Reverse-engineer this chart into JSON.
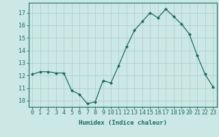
{
  "x": [
    0,
    1,
    2,
    3,
    4,
    5,
    6,
    7,
    8,
    9,
    10,
    11,
    12,
    13,
    14,
    15,
    16,
    17,
    18,
    19,
    20,
    21,
    22,
    23
  ],
  "y": [
    12.1,
    12.3,
    12.3,
    12.2,
    12.2,
    10.8,
    10.5,
    9.75,
    9.9,
    11.6,
    11.4,
    12.8,
    14.3,
    15.6,
    16.3,
    17.0,
    16.6,
    17.3,
    16.7,
    16.1,
    15.3,
    13.6,
    12.1,
    11.1
  ],
  "line_color": "#1a6b5e",
  "marker": "D",
  "marker_size": 2.0,
  "bg_color": "#cce8e5",
  "grid_color": "#b0d0cc",
  "xlabel": "Humidex (Indice chaleur)",
  "ylabel_ticks": [
    10,
    11,
    12,
    13,
    14,
    15,
    16,
    17
  ],
  "ylim": [
    9.5,
    17.8
  ],
  "xlim": [
    -0.5,
    23.5
  ],
  "tick_color": "#1a6b5e",
  "label_color": "#1a6b5e",
  "font_size": 6.0,
  "xlabel_fontsize": 6.5
}
